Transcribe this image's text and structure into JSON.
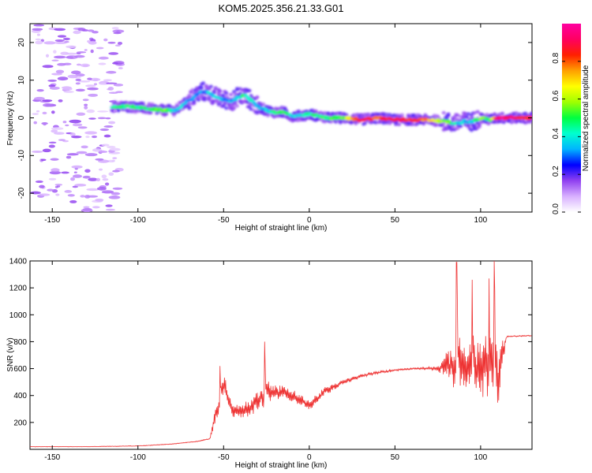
{
  "title": "KOM5.2025.356.21.33.G01",
  "chart_data": [
    {
      "type": "heatmap",
      "xlabel": "Height of straight line (km)",
      "ylabel": "Frequency (Hz)",
      "xlim": [
        -163,
        130
      ],
      "ylim": [
        -25,
        25
      ],
      "xticks": [
        -150,
        -100,
        -50,
        0,
        50,
        100
      ],
      "yticks": [
        -20,
        -10,
        0,
        10,
        20
      ],
      "colorbar": {
        "label": "Normalized spectral amplitude",
        "range": [
          0,
          1
        ],
        "ticks": [
          "0.0",
          "0.2",
          "0.4",
          "0.6",
          "0.8"
        ],
        "colors": [
          "#ffffff",
          "#d8b0ff",
          "#9040f0",
          "#0000ff",
          "#00b4ff",
          "#00ffd0",
          "#00ff40",
          "#a0ff00",
          "#ffff00",
          "#ffa000",
          "#ff2000",
          "#ff0060",
          "#ff00a0"
        ]
      },
      "ridge": {
        "x": [
          -115,
          -105,
          -95,
          -85,
          -78,
          -72,
          -66,
          -62,
          -58,
          -52,
          -45,
          -42,
          -38,
          -35,
          -30,
          -25,
          -20,
          -15,
          -10,
          -5,
          0,
          10,
          20,
          30,
          40,
          50,
          60,
          70,
          80,
          85,
          90,
          95,
          100,
          105,
          110,
          120,
          130
        ],
        "y": [
          3,
          3,
          2.5,
          2,
          2,
          4,
          6,
          7,
          6.5,
          5,
          4.5,
          5.5,
          6,
          5,
          3,
          2,
          1.5,
          1.5,
          0.5,
          0.5,
          1,
          0,
          0,
          -0.5,
          0,
          -0.5,
          -0.5,
          -0.5,
          -1,
          -1.5,
          -1,
          -1,
          0,
          -0.5,
          0,
          0,
          0
        ],
        "amplitude": [
          0.45,
          0.5,
          0.45,
          0.55,
          0.4,
          0.3,
          0.35,
          0.3,
          0.4,
          0.35,
          0.3,
          0.35,
          0.5,
          0.4,
          0.35,
          0.35,
          0.45,
          0.5,
          0.4,
          0.4,
          0.45,
          0.5,
          0.55,
          0.9,
          0.8,
          0.9,
          0.85,
          0.75,
          0.55,
          0.4,
          0.35,
          0.35,
          0.6,
          0.45,
          0.95,
          0.9,
          0.85
        ]
      }
    },
    {
      "type": "line",
      "xlabel": "Height of straight line (km)",
      "ylabel": "SNR (v/v)",
      "xlim": [
        -163,
        130
      ],
      "ylim": [
        0,
        1400
      ],
      "xticks": [
        -150,
        -100,
        -50,
        0,
        50,
        100
      ],
      "yticks": [
        200,
        400,
        600,
        800,
        1000,
        1200,
        1400
      ],
      "color": "#ee3333",
      "envelope": {
        "x": [
          -163,
          -130,
          -100,
          -80,
          -65,
          -58,
          -55,
          -50,
          -45,
          -40,
          -30,
          -25,
          -20,
          -10,
          0,
          10,
          20,
          30,
          40,
          50,
          60,
          70,
          75,
          80,
          85,
          90,
          95,
          100,
          105,
          110,
          115,
          130
        ],
        "y": [
          20,
          20,
          25,
          40,
          60,
          80,
          250,
          480,
          300,
          280,
          360,
          420,
          430,
          400,
          330,
          440,
          500,
          545,
          570,
          590,
          600,
          605,
          600,
          630,
          620,
          600,
          600,
          620,
          600,
          550,
          840,
          845
        ],
        "amplitude": [
          3,
          3,
          4,
          5,
          6,
          8,
          120,
          150,
          120,
          110,
          150,
          160,
          120,
          90,
          80,
          60,
          40,
          25,
          20,
          15,
          12,
          20,
          40,
          180,
          320,
          420,
          400,
          450,
          500,
          480,
          8,
          8
        ]
      },
      "peaks": [
        {
          "x": -52,
          "y": 620
        },
        {
          "x": -26,
          "y": 800
        },
        {
          "x": 86,
          "y": 1390
        },
        {
          "x": 95,
          "y": 1260
        },
        {
          "x": 105,
          "y": 1270
        },
        {
          "x": 108,
          "y": 1400
        }
      ]
    }
  ]
}
